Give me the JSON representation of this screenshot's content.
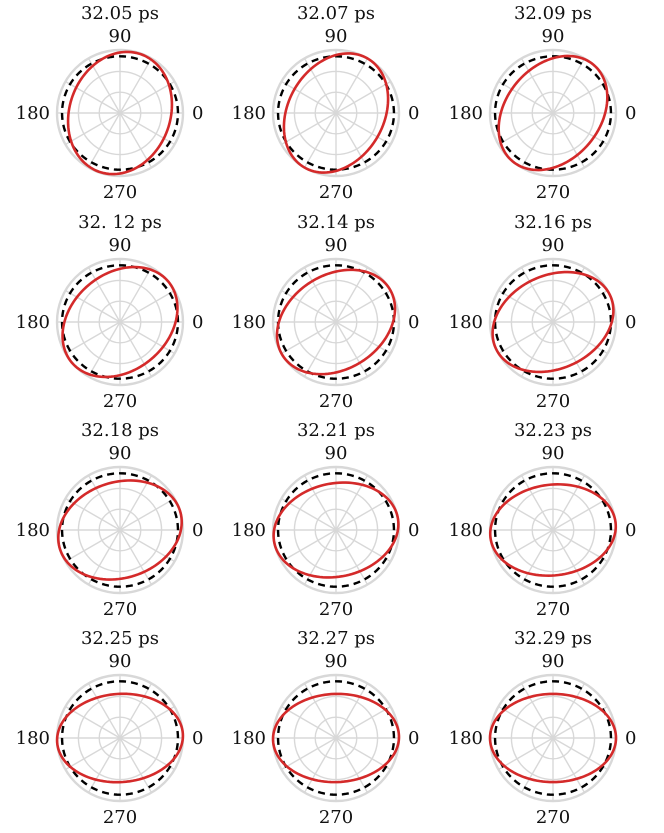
{
  "chart_data": {
    "type": "polar",
    "angle_tick_labels": [
      "0",
      "90",
      "180",
      "270"
    ],
    "radial_spokes_deg": [
      0,
      30,
      60,
      90,
      120,
      150,
      180,
      210,
      240,
      270,
      300,
      330
    ],
    "rlim": [
      0,
      1
    ],
    "radial_grid": [
      0.33,
      0.66,
      1.0
    ],
    "grid": true,
    "colors": {
      "solid": "#d42a2a",
      "dashed": "#000000",
      "grid": "#d8d8d8"
    },
    "panels": [
      {
        "title": "32.05 ps",
        "dashed": {
          "a": 0.92,
          "b": 0.9,
          "tilt_deg": 0
        },
        "solid": {
          "a": 0.99,
          "b": 0.8,
          "tilt_deg": 70
        }
      },
      {
        "title": "32.07 ps",
        "dashed": {
          "a": 0.92,
          "b": 0.9,
          "tilt_deg": 0
        },
        "solid": {
          "a": 1.0,
          "b": 0.76,
          "tilt_deg": 60
        }
      },
      {
        "title": "32.09 ps",
        "dashed": {
          "a": 0.92,
          "b": 0.9,
          "tilt_deg": 0
        },
        "solid": {
          "a": 1.0,
          "b": 0.75,
          "tilt_deg": 50
        }
      },
      {
        "title": "32. 12 ps",
        "dashed": {
          "a": 0.92,
          "b": 0.9,
          "tilt_deg": 0
        },
        "solid": {
          "a": 1.0,
          "b": 0.77,
          "tilt_deg": 40
        }
      },
      {
        "title": "32.14 ps",
        "dashed": {
          "a": 0.92,
          "b": 0.9,
          "tilt_deg": 0
        },
        "solid": {
          "a": 1.0,
          "b": 0.75,
          "tilt_deg": 32
        }
      },
      {
        "title": "32.16 ps",
        "dashed": {
          "a": 0.92,
          "b": 0.9,
          "tilt_deg": 0
        },
        "solid": {
          "a": 1.0,
          "b": 0.74,
          "tilt_deg": 25
        }
      },
      {
        "title": "32.18 ps",
        "dashed": {
          "a": 0.92,
          "b": 0.9,
          "tilt_deg": 0
        },
        "solid": {
          "a": 1.0,
          "b": 0.76,
          "tilt_deg": 18
        }
      },
      {
        "title": "32.21 ps",
        "dashed": {
          "a": 0.92,
          "b": 0.9,
          "tilt_deg": 0
        },
        "solid": {
          "a": 1.0,
          "b": 0.74,
          "tilt_deg": 12
        }
      },
      {
        "title": "32.23 ps",
        "dashed": {
          "a": 0.92,
          "b": 0.9,
          "tilt_deg": 0
        },
        "solid": {
          "a": 1.0,
          "b": 0.72,
          "tilt_deg": 7
        }
      },
      {
        "title": "32.25 ps",
        "dashed": {
          "a": 0.92,
          "b": 0.9,
          "tilt_deg": 0
        },
        "solid": {
          "a": 1.0,
          "b": 0.7,
          "tilt_deg": 4
        }
      },
      {
        "title": "32.27 ps",
        "dashed": {
          "a": 0.92,
          "b": 0.9,
          "tilt_deg": 0
        },
        "solid": {
          "a": 1.0,
          "b": 0.7,
          "tilt_deg": 2
        }
      },
      {
        "title": "32.29 ps",
        "dashed": {
          "a": 0.92,
          "b": 0.9,
          "tilt_deg": 0
        },
        "solid": {
          "a": 1.0,
          "b": 0.7,
          "tilt_deg": 0
        }
      }
    ]
  }
}
